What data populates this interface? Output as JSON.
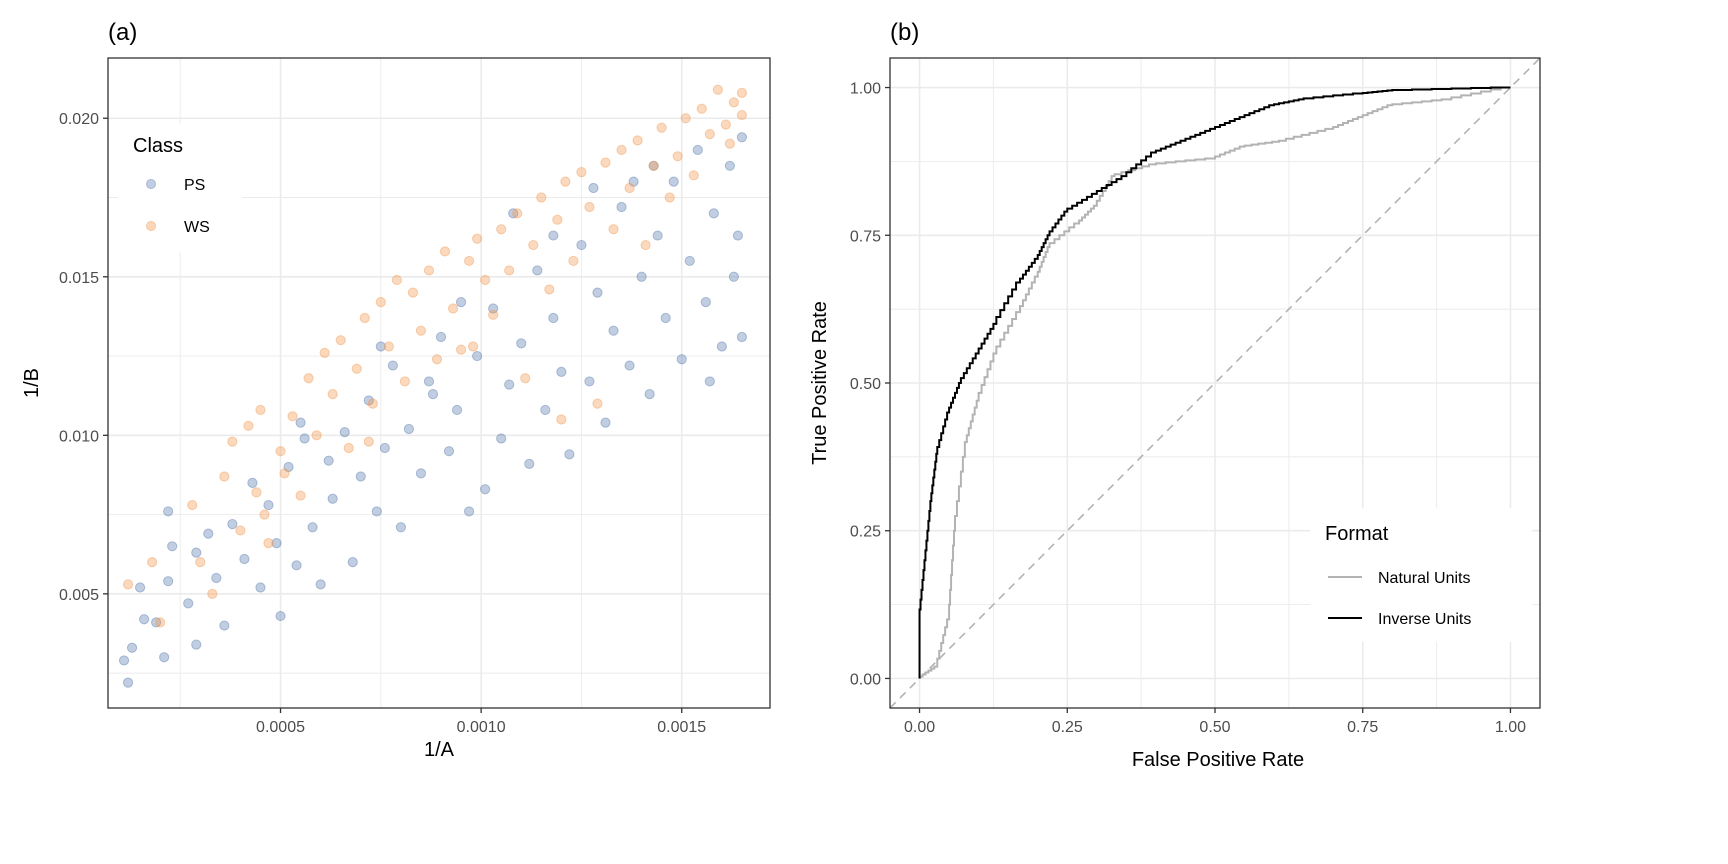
{
  "chart_data": [
    {
      "panel": "(a)",
      "type": "scatter",
      "xlabel": "1/A",
      "ylabel": "1/B",
      "xlim": [
        7e-05,
        0.00172
      ],
      "ylim": [
        0.0014,
        0.0219
      ],
      "xticks": [
        0.0005,
        0.001,
        0.0015
      ],
      "xtick_labels": [
        "0.0005",
        "0.0010",
        "0.0015"
      ],
      "yticks": [
        0.005,
        0.01,
        0.015,
        0.02
      ],
      "ytick_labels": [
        "0.005",
        "0.010",
        "0.015",
        "0.020"
      ],
      "grid": true,
      "legend": {
        "title": "Class",
        "placement": "top-left"
      },
      "series": [
        {
          "name": "PS",
          "color": "#5b7db0",
          "points": [
            [
              0.00011,
              0.0029
            ],
            [
              0.00012,
              0.0022
            ],
            [
              0.00013,
              0.0033
            ],
            [
              0.00015,
              0.0052
            ],
            [
              0.00016,
              0.0042
            ],
            [
              0.00019,
              0.0041
            ],
            [
              0.00021,
              0.003
            ],
            [
              0.00022,
              0.0054
            ],
            [
              0.00023,
              0.0065
            ],
            [
              0.00022,
              0.0076
            ],
            [
              0.00027,
              0.0047
            ],
            [
              0.00029,
              0.0063
            ],
            [
              0.00029,
              0.0034
            ],
            [
              0.00032,
              0.0069
            ],
            [
              0.00034,
              0.0055
            ],
            [
              0.00036,
              0.004
            ],
            [
              0.00038,
              0.0072
            ],
            [
              0.00041,
              0.0061
            ],
            [
              0.00043,
              0.0085
            ],
            [
              0.00045,
              0.0052
            ],
            [
              0.00047,
              0.0078
            ],
            [
              0.0005,
              0.0043
            ],
            [
              0.00049,
              0.0066
            ],
            [
              0.00052,
              0.009
            ],
            [
              0.00054,
              0.0059
            ],
            [
              0.00056,
              0.0099
            ],
            [
              0.00058,
              0.0071
            ],
            [
              0.0006,
              0.0053
            ],
            [
              0.00062,
              0.0092
            ],
            [
              0.00063,
              0.008
            ],
            [
              0.00066,
              0.0101
            ],
            [
              0.00068,
              0.006
            ],
            [
              0.0007,
              0.0087
            ],
            [
              0.00072,
              0.0111
            ],
            [
              0.00074,
              0.0076
            ],
            [
              0.00076,
              0.0096
            ],
            [
              0.00078,
              0.0122
            ],
            [
              0.0008,
              0.0071
            ],
            [
              0.00082,
              0.0102
            ],
            [
              0.00085,
              0.0088
            ],
            [
              0.00087,
              0.0117
            ],
            [
              0.0009,
              0.0131
            ],
            [
              0.00092,
              0.0095
            ],
            [
              0.00094,
              0.0108
            ],
            [
              0.00097,
              0.0076
            ],
            [
              0.00099,
              0.0125
            ],
            [
              0.00101,
              0.0083
            ],
            [
              0.00103,
              0.014
            ],
            [
              0.00105,
              0.0099
            ],
            [
              0.00107,
              0.0116
            ],
            [
              0.0011,
              0.0129
            ],
            [
              0.00112,
              0.0091
            ],
            [
              0.00114,
              0.0152
            ],
            [
              0.00116,
              0.0108
            ],
            [
              0.00118,
              0.0137
            ],
            [
              0.0012,
              0.012
            ],
            [
              0.00122,
              0.0094
            ],
            [
              0.00125,
              0.016
            ],
            [
              0.00127,
              0.0117
            ],
            [
              0.00129,
              0.0145
            ],
            [
              0.00131,
              0.0104
            ],
            [
              0.00133,
              0.0133
            ],
            [
              0.00135,
              0.0172
            ],
            [
              0.00137,
              0.0122
            ],
            [
              0.0014,
              0.015
            ],
            [
              0.00142,
              0.0113
            ],
            [
              0.00144,
              0.0163
            ],
            [
              0.00146,
              0.0137
            ],
            [
              0.00148,
              0.018
            ],
            [
              0.0015,
              0.0124
            ],
            [
              0.00152,
              0.0155
            ],
            [
              0.00154,
              0.019
            ],
            [
              0.00156,
              0.0142
            ],
            [
              0.00158,
              0.017
            ],
            [
              0.0016,
              0.0128
            ],
            [
              0.00162,
              0.0185
            ],
            [
              0.00163,
              0.015
            ],
            [
              0.00165,
              0.0194
            ],
            [
              0.00165,
              0.0131
            ],
            [
              0.00164,
              0.0163
            ],
            [
              0.00157,
              0.0117
            ],
            [
              0.00138,
              0.018
            ],
            [
              0.00118,
              0.0163
            ],
            [
              0.00095,
              0.0142
            ],
            [
              0.00075,
              0.0128
            ],
            [
              0.00055,
              0.0104
            ],
            [
              0.00108,
              0.017
            ],
            [
              0.00128,
              0.0178
            ],
            [
              0.00143,
              0.0185
            ],
            [
              0.00088,
              0.0113
            ]
          ]
        },
        {
          "name": "WS",
          "color": "#f39c55",
          "points": [
            [
              0.00012,
              0.0053
            ],
            [
              0.00018,
              0.006
            ],
            [
              0.0002,
              0.0041
            ],
            [
              0.00028,
              0.0078
            ],
            [
              0.0003,
              0.006
            ],
            [
              0.00033,
              0.005
            ],
            [
              0.00036,
              0.0087
            ],
            [
              0.00038,
              0.0098
            ],
            [
              0.0004,
              0.007
            ],
            [
              0.00042,
              0.0103
            ],
            [
              0.00044,
              0.0082
            ],
            [
              0.00045,
              0.0108
            ],
            [
              0.00047,
              0.0066
            ],
            [
              0.0005,
              0.0095
            ],
            [
              0.00051,
              0.0088
            ],
            [
              0.00053,
              0.0106
            ],
            [
              0.00055,
              0.0081
            ],
            [
              0.00057,
              0.0118
            ],
            [
              0.00059,
              0.01
            ],
            [
              0.00061,
              0.0126
            ],
            [
              0.00063,
              0.0113
            ],
            [
              0.00065,
              0.013
            ],
            [
              0.00067,
              0.0096
            ],
            [
              0.00069,
              0.0121
            ],
            [
              0.00071,
              0.0137
            ],
            [
              0.00073,
              0.011
            ],
            [
              0.00075,
              0.0142
            ],
            [
              0.00077,
              0.0128
            ],
            [
              0.00079,
              0.0149
            ],
            [
              0.00081,
              0.0117
            ],
            [
              0.00083,
              0.0145
            ],
            [
              0.00085,
              0.0133
            ],
            [
              0.00087,
              0.0152
            ],
            [
              0.00089,
              0.0124
            ],
            [
              0.00091,
              0.0158
            ],
            [
              0.00093,
              0.014
            ],
            [
              0.00095,
              0.0127
            ],
            [
              0.00097,
              0.0155
            ],
            [
              0.00099,
              0.0162
            ],
            [
              0.00101,
              0.0149
            ],
            [
              0.00103,
              0.0138
            ],
            [
              0.00105,
              0.0165
            ],
            [
              0.00107,
              0.0152
            ],
            [
              0.00109,
              0.017
            ],
            [
              0.00111,
              0.0118
            ],
            [
              0.00113,
              0.016
            ],
            [
              0.00115,
              0.0175
            ],
            [
              0.00117,
              0.0146
            ],
            [
              0.00119,
              0.0168
            ],
            [
              0.00121,
              0.018
            ],
            [
              0.00123,
              0.0155
            ],
            [
              0.00125,
              0.0183
            ],
            [
              0.00127,
              0.0172
            ],
            [
              0.00129,
              0.011
            ],
            [
              0.00131,
              0.0186
            ],
            [
              0.00133,
              0.0165
            ],
            [
              0.00135,
              0.019
            ],
            [
              0.00137,
              0.0178
            ],
            [
              0.00139,
              0.0193
            ],
            [
              0.00141,
              0.016
            ],
            [
              0.00143,
              0.0185
            ],
            [
              0.00145,
              0.0197
            ],
            [
              0.00147,
              0.0175
            ],
            [
              0.00149,
              0.0188
            ],
            [
              0.00151,
              0.02
            ],
            [
              0.00153,
              0.0182
            ],
            [
              0.00155,
              0.0203
            ],
            [
              0.00157,
              0.0195
            ],
            [
              0.00159,
              0.0209
            ],
            [
              0.00161,
              0.0198
            ],
            [
              0.00163,
              0.0205
            ],
            [
              0.00165,
              0.0208
            ],
            [
              0.00165,
              0.0201
            ],
            [
              0.00162,
              0.0192
            ],
            [
              0.0012,
              0.0105
            ],
            [
              0.00098,
              0.0128
            ],
            [
              0.00072,
              0.0098
            ],
            [
              0.00046,
              0.0075
            ]
          ]
        }
      ]
    },
    {
      "panel": "(b)",
      "type": "line",
      "xlabel": "False Positive Rate",
      "ylabel": "True Positive Rate",
      "xlim": [
        -0.05,
        1.05
      ],
      "ylim": [
        -0.05,
        1.05
      ],
      "xticks": [
        0,
        0.25,
        0.5,
        0.75,
        1
      ],
      "xtick_labels": [
        "0.00",
        "0.25",
        "0.50",
        "0.75",
        "1.00"
      ],
      "yticks": [
        0,
        0.25,
        0.5,
        0.75,
        1
      ],
      "ytick_labels": [
        "0.00",
        "0.25",
        "0.50",
        "0.75",
        "1.00"
      ],
      "grid": true,
      "legend": {
        "title": "Format",
        "placement": "bottom-right"
      },
      "reference_line": {
        "from": [
          0,
          0
        ],
        "to": [
          1,
          1
        ],
        "style": "dashed",
        "color": "#b3b3b3"
      },
      "series": [
        {
          "name": "Natural Units",
          "color": "#b3b3b3",
          "points": [
            [
              0,
              0
            ],
            [
              0.03,
              0.02
            ],
            [
              0.05,
              0.1
            ],
            [
              0.06,
              0.25
            ],
            [
              0.08,
              0.4
            ],
            [
              0.1,
              0.47
            ],
            [
              0.13,
              0.55
            ],
            [
              0.17,
              0.62
            ],
            [
              0.2,
              0.68
            ],
            [
              0.22,
              0.73
            ],
            [
              0.27,
              0.77
            ],
            [
              0.3,
              0.8
            ],
            [
              0.33,
              0.85
            ],
            [
              0.4,
              0.87
            ],
            [
              0.5,
              0.88
            ],
            [
              0.55,
              0.9
            ],
            [
              0.62,
              0.91
            ],
            [
              0.7,
              0.93
            ],
            [
              0.75,
              0.95
            ],
            [
              0.8,
              0.97
            ],
            [
              0.9,
              0.98
            ],
            [
              1,
              1
            ]
          ]
        },
        {
          "name": "Inverse Units",
          "color": "#000000",
          "points": [
            [
              0,
              0
            ],
            [
              0,
              0.1
            ],
            [
              0.01,
              0.2
            ],
            [
              0.02,
              0.3
            ],
            [
              0.03,
              0.38
            ],
            [
              0.05,
              0.45
            ],
            [
              0.07,
              0.5
            ],
            [
              0.1,
              0.55
            ],
            [
              0.13,
              0.6
            ],
            [
              0.17,
              0.67
            ],
            [
              0.2,
              0.71
            ],
            [
              0.22,
              0.75
            ],
            [
              0.25,
              0.79
            ],
            [
              0.3,
              0.82
            ],
            [
              0.35,
              0.85
            ],
            [
              0.4,
              0.89
            ],
            [
              0.45,
              0.91
            ],
            [
              0.5,
              0.93
            ],
            [
              0.55,
              0.95
            ],
            [
              0.6,
              0.97
            ],
            [
              0.65,
              0.98
            ],
            [
              0.75,
              0.99
            ],
            [
              0.8,
              0.995
            ],
            [
              1,
              1
            ]
          ]
        }
      ]
    }
  ]
}
